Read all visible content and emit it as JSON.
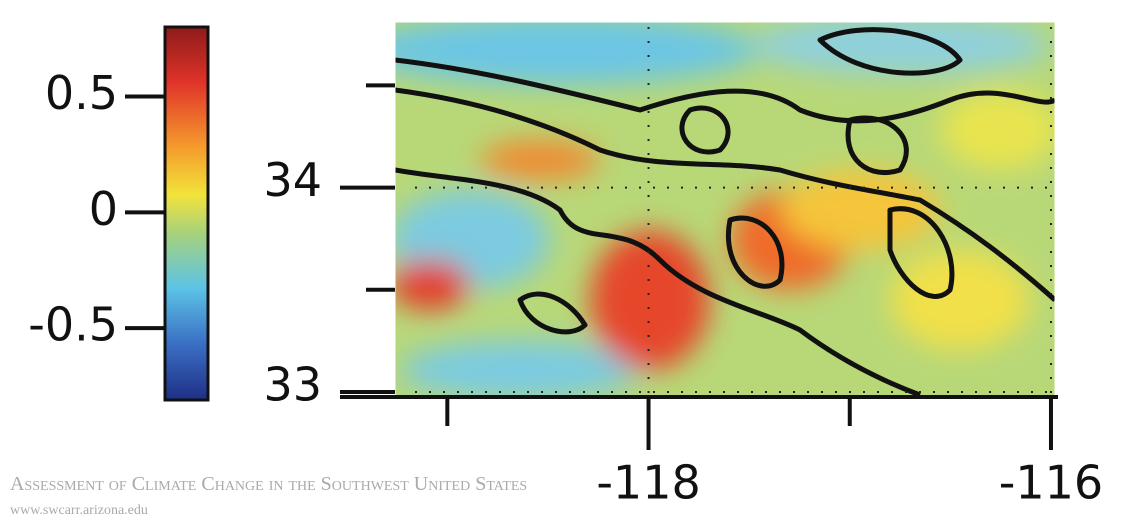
{
  "colorbar": {
    "range": [
      -0.81,
      0.8
    ],
    "ticks": [
      0.5,
      0,
      -0.5
    ]
  },
  "map": {
    "ylim": [
      33,
      34.81
    ],
    "yticks": [
      33,
      34
    ],
    "minor_yticks": [
      33.5,
      34.5
    ],
    "xlim": [
      -119.26,
      -115.98
    ],
    "xticks": [
      -118,
      -116
    ],
    "minor_xticks": [
      -119,
      -117
    ]
  },
  "footer": {
    "title": "Assessment of Climate Change in the Southwest United States",
    "url": "www.swcarr.arizona.edu"
  }
}
